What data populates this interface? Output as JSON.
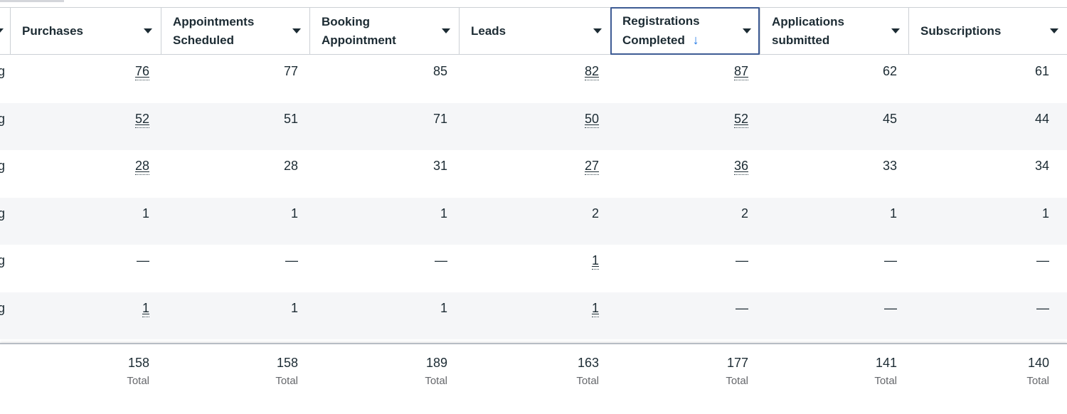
{
  "theme": {
    "accent_blue": "#1b74e4",
    "sorted_column_border": "#3e5c94",
    "alt_row_bg": "#f5f6f8",
    "text": "#1c2b33",
    "muted_text": "#65676b",
    "divider": "#ccd0d5"
  },
  "table": {
    "columns": [
      {
        "label": "Purchases"
      },
      {
        "label": "Appointments Scheduled"
      },
      {
        "label": "Booking Appointment"
      },
      {
        "label": "Leads"
      },
      {
        "label": "Registrations Completed",
        "sorted": true,
        "sort_direction": "descending",
        "sort_arrow": "↓"
      },
      {
        "label": "Applications submitted"
      },
      {
        "label": "Subscriptions"
      }
    ],
    "clipped_left_column": {
      "visible_row_text_tail": "g"
    },
    "rows": [
      [
        "g",
        "76",
        "77",
        "85",
        "82",
        "87",
        "62",
        "61"
      ],
      [
        "g",
        "52",
        "51",
        "71",
        "50",
        "52",
        "45",
        "44"
      ],
      [
        "g",
        "28",
        "28",
        "31",
        "27",
        "36",
        "33",
        "34"
      ],
      [
        "g",
        "1",
        "1",
        "1",
        "2",
        "2",
        "1",
        "1"
      ],
      [
        "g",
        "—",
        "—",
        "—",
        "1",
        "—",
        "—",
        "—"
      ],
      [
        "g",
        "1",
        "1",
        "1",
        "1",
        "—",
        "—",
        "—"
      ]
    ],
    "linked_cells": [
      [
        1,
        4,
        5
      ],
      [
        1,
        4,
        5
      ],
      [
        1,
        4,
        5
      ],
      [],
      [
        4
      ],
      [
        1,
        4
      ]
    ],
    "totals": {
      "values": [
        "158",
        "158",
        "189",
        "163",
        "177",
        "141",
        "140"
      ],
      "label": "Total"
    }
  }
}
